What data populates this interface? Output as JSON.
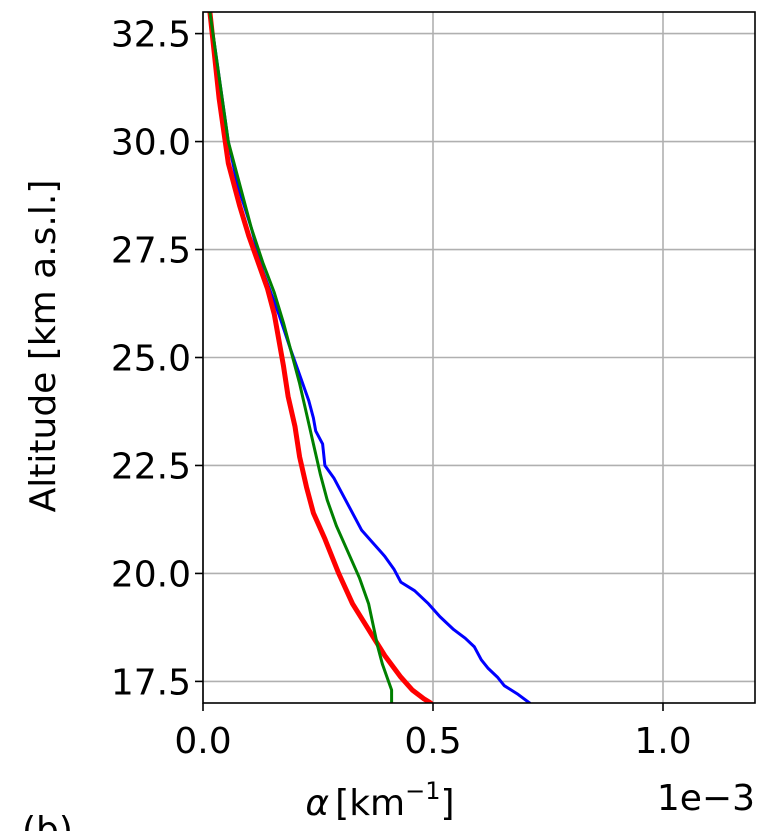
{
  "chart_data": {
    "type": "line",
    "title": "",
    "panel_label": "(b)",
    "xlabel_symbol": "α",
    "xlabel_unit_base": "[km",
    "xlabel_unit_exp": "−1",
    "xlabel_unit_close": "]",
    "x_offset_text": "1e−3",
    "ylabel": "Altitude [km a.s.l.]",
    "xlim": [
      0.0,
      0.0012
    ],
    "ylim": [
      17.0,
      33.0
    ],
    "grid": true,
    "xticks": [
      {
        "value": 0.0,
        "label": "0.0"
      },
      {
        "value": 0.0005,
        "label": "0.5"
      },
      {
        "value": 0.001,
        "label": "1.0"
      }
    ],
    "yticks": [
      {
        "value": 17.5,
        "label": "17.5"
      },
      {
        "value": 20.0,
        "label": "20.0"
      },
      {
        "value": 22.5,
        "label": "22.5"
      },
      {
        "value": 25.0,
        "label": "25.0"
      },
      {
        "value": 27.5,
        "label": "27.5"
      },
      {
        "value": 30.0,
        "label": "30.0"
      },
      {
        "value": 32.5,
        "label": "32.5"
      }
    ],
    "series": [
      {
        "color": "#0000ff",
        "width": 3,
        "points": [
          [
            1.5e-05,
            33.0
          ],
          [
            3.5e-05,
            31.5
          ],
          [
            5.5e-05,
            30.0
          ],
          [
            7.5e-05,
            29.0
          ],
          [
            0.000105,
            28.0
          ],
          [
            0.00013,
            27.0
          ],
          [
            0.000165,
            26.0
          ],
          [
            0.00019,
            25.2
          ],
          [
            0.00021,
            24.6
          ],
          [
            0.00023,
            24.0
          ],
          [
            0.00024,
            23.6
          ],
          [
            0.000245,
            23.3
          ],
          [
            0.00026,
            23.0
          ],
          [
            0.000265,
            22.5
          ],
          [
            0.000285,
            22.2
          ],
          [
            0.0003,
            21.9
          ],
          [
            0.00032,
            21.5
          ],
          [
            0.000345,
            21.0
          ],
          [
            0.00037,
            20.7
          ],
          [
            0.000395,
            20.4
          ],
          [
            0.000415,
            20.1
          ],
          [
            0.00043,
            19.8
          ],
          [
            0.00046,
            19.6
          ],
          [
            0.00049,
            19.3
          ],
          [
            0.000515,
            19.0
          ],
          [
            0.000545,
            18.7
          ],
          [
            0.00057,
            18.5
          ],
          [
            0.00059,
            18.3
          ],
          [
            0.000605,
            18.0
          ],
          [
            0.00062,
            17.8
          ],
          [
            0.00064,
            17.6
          ],
          [
            0.000655,
            17.4
          ],
          [
            0.000685,
            17.2
          ],
          [
            0.00071,
            17.0
          ]
        ]
      },
      {
        "color": "#ff0000",
        "width": 5,
        "points": [
          [
            1.5e-05,
            33.0
          ],
          [
            3.5e-05,
            31.0
          ],
          [
            5.5e-05,
            29.5
          ],
          [
            8e-05,
            28.5
          ],
          [
            0.0001,
            27.8
          ],
          [
            0.00012,
            27.2
          ],
          [
            0.00014,
            26.6
          ],
          [
            0.000155,
            26.0
          ],
          [
            0.000165,
            25.4
          ],
          [
            0.000175,
            24.8
          ],
          [
            0.000185,
            24.1
          ],
          [
            0.0002,
            23.4
          ],
          [
            0.00021,
            22.7
          ],
          [
            0.000225,
            22.0
          ],
          [
            0.00024,
            21.4
          ],
          [
            0.000265,
            20.8
          ],
          [
            0.000295,
            20.0
          ],
          [
            0.000325,
            19.3
          ],
          [
            0.00036,
            18.7
          ],
          [
            0.000395,
            18.1
          ],
          [
            0.00043,
            17.6
          ],
          [
            0.000455,
            17.3
          ],
          [
            0.00048,
            17.1
          ],
          [
            0.000495,
            17.0
          ]
        ]
      },
      {
        "color": "#008000",
        "width": 3,
        "points": [
          [
            1.5e-05,
            33.0
          ],
          [
            3.5e-05,
            31.5
          ],
          [
            5.5e-05,
            30.0
          ],
          [
            8e-05,
            29.0
          ],
          [
            0.000105,
            28.0
          ],
          [
            0.00013,
            27.2
          ],
          [
            0.000155,
            26.5
          ],
          [
            0.000175,
            25.8
          ],
          [
            0.000195,
            25.0
          ],
          [
            0.00021,
            24.4
          ],
          [
            0.000225,
            23.7
          ],
          [
            0.00024,
            23.0
          ],
          [
            0.000255,
            22.3
          ],
          [
            0.00027,
            21.7
          ],
          [
            0.00029,
            21.1
          ],
          [
            0.000315,
            20.5
          ],
          [
            0.00034,
            19.9
          ],
          [
            0.00036,
            19.3
          ],
          [
            0.00037,
            18.8
          ],
          [
            0.00038,
            18.3
          ],
          [
            0.00039,
            17.9
          ],
          [
            0.0004,
            17.6
          ],
          [
            0.00041,
            17.3
          ],
          [
            0.00041,
            17.0
          ]
        ]
      }
    ]
  }
}
